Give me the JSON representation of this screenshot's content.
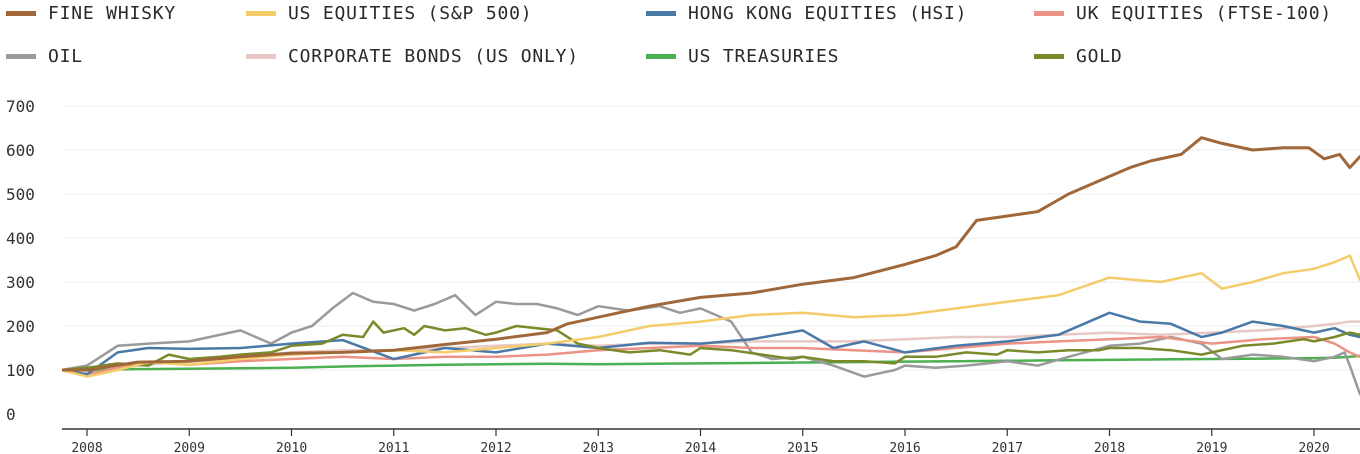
{
  "chart_data": {
    "type": "line",
    "title": "",
    "xlabel": "",
    "ylabel": "",
    "x_ticks": [
      "2008",
      "2009",
      "2010",
      "2011",
      "2012",
      "2013",
      "2014",
      "2015",
      "2016",
      "2017",
      "2018",
      "2019",
      "2020"
    ],
    "y_ticks": [
      0,
      100,
      200,
      300,
      400,
      500,
      600,
      700
    ],
    "xlim": [
      2007.75,
      2020.45
    ],
    "ylim": [
      0,
      700
    ],
    "grid": "horizontal",
    "legend_position": "top",
    "series": [
      {
        "name": "FINE WHISKY",
        "color": "#a0683a",
        "width": 3,
        "x": [
          2007.75,
          2008.0,
          2008.5,
          2009.0,
          2009.5,
          2010.0,
          2010.5,
          2011.0,
          2011.5,
          2012.0,
          2012.5,
          2012.7,
          2013.0,
          2013.5,
          2014.0,
          2014.5,
          2015.0,
          2015.5,
          2016.0,
          2016.3,
          2016.5,
          2016.7,
          2017.0,
          2017.3,
          2017.6,
          2017.9,
          2018.2,
          2018.4,
          2018.7,
          2018.9,
          2019.1,
          2019.4,
          2019.7,
          2019.95,
          2020.1,
          2020.25,
          2020.35,
          2020.45
        ],
        "y": [
          100,
          100,
          118,
          120,
          130,
          138,
          140,
          145,
          158,
          170,
          185,
          205,
          220,
          245,
          265,
          275,
          295,
          310,
          340,
          360,
          380,
          440,
          450,
          460,
          500,
          530,
          560,
          575,
          590,
          628,
          615,
          600,
          605,
          605,
          580,
          590,
          560,
          585
        ]
      },
      {
        "name": "US EQUITIES (S&P 500)",
        "color": "#f5cc6a",
        "width": 2.5,
        "x": [
          2007.75,
          2008.0,
          2008.3,
          2008.6,
          2009.0,
          2009.5,
          2010.0,
          2010.5,
          2011.0,
          2011.5,
          2012.0,
          2012.5,
          2013.0,
          2013.5,
          2014.0,
          2014.5,
          2015.0,
          2015.5,
          2016.0,
          2016.5,
          2017.0,
          2017.5,
          2018.0,
          2018.5,
          2018.9,
          2019.1,
          2019.4,
          2019.7,
          2020.0,
          2020.2,
          2020.35,
          2020.45
        ],
        "y": [
          100,
          85,
          100,
          118,
          112,
          125,
          135,
          140,
          145,
          140,
          150,
          160,
          175,
          200,
          210,
          225,
          230,
          220,
          225,
          240,
          255,
          270,
          310,
          300,
          320,
          285,
          300,
          320,
          330,
          345,
          360,
          305
        ]
      },
      {
        "name": "HONG KONG EQUITIES (HSI)",
        "color": "#4a79a8",
        "width": 2.5,
        "x": [
          2007.75,
          2008.0,
          2008.3,
          2008.6,
          2009.0,
          2009.5,
          2010.0,
          2010.5,
          2011.0,
          2011.5,
          2012.0,
          2012.5,
          2013.0,
          2013.5,
          2014.0,
          2014.5,
          2015.0,
          2015.3,
          2015.6,
          2016.0,
          2016.5,
          2017.0,
          2017.5,
          2018.0,
          2018.3,
          2018.6,
          2018.9,
          2019.1,
          2019.4,
          2019.7,
          2020.0,
          2020.2,
          2020.35,
          2020.45
        ],
        "y": [
          100,
          90,
          140,
          150,
          148,
          150,
          160,
          168,
          125,
          150,
          140,
          160,
          150,
          162,
          160,
          170,
          190,
          150,
          165,
          140,
          155,
          165,
          180,
          230,
          210,
          205,
          175,
          185,
          210,
          200,
          185,
          195,
          180,
          175
        ]
      },
      {
        "name": "UK EQUITIES (FTSE-100)",
        "color": "#ec9385",
        "width": 2.5,
        "x": [
          2007.75,
          2008.0,
          2008.3,
          2008.6,
          2009.0,
          2009.5,
          2010.0,
          2010.5,
          2011.0,
          2011.5,
          2012.0,
          2012.5,
          2013.0,
          2013.5,
          2014.0,
          2014.5,
          2015.0,
          2015.5,
          2016.0,
          2016.5,
          2017.0,
          2017.5,
          2018.0,
          2018.5,
          2019.0,
          2019.5,
          2020.0,
          2020.2,
          2020.35,
          2020.45
        ],
        "y": [
          100,
          90,
          105,
          118,
          112,
          120,
          125,
          130,
          125,
          130,
          130,
          135,
          145,
          150,
          155,
          150,
          150,
          145,
          140,
          150,
          160,
          165,
          170,
          175,
          160,
          170,
          175,
          160,
          140,
          130
        ]
      },
      {
        "name": "OIL",
        "color": "#9a9a9a",
        "width": 2.5,
        "x": [
          2007.75,
          2008.0,
          2008.3,
          2008.6,
          2009.0,
          2009.2,
          2009.5,
          2009.8,
          2010.0,
          2010.2,
          2010.4,
          2010.6,
          2010.8,
          2011.0,
          2011.2,
          2011.4,
          2011.6,
          2011.8,
          2012.0,
          2012.2,
          2012.4,
          2012.6,
          2012.8,
          2013.0,
          2013.3,
          2013.6,
          2013.8,
          2014.0,
          2014.3,
          2014.5,
          2014.7,
          2015.0,
          2015.3,
          2015.6,
          2015.9,
          2016.0,
          2016.3,
          2016.6,
          2017.0,
          2017.3,
          2017.6,
          2018.0,
          2018.3,
          2018.6,
          2018.9,
          2019.1,
          2019.4,
          2019.7,
          2020.0,
          2020.2,
          2020.3,
          2020.35,
          2020.45
        ],
        "y": [
          100,
          110,
          155,
          160,
          165,
          175,
          190,
          160,
          185,
          200,
          240,
          275,
          255,
          250,
          235,
          250,
          270,
          225,
          255,
          250,
          250,
          240,
          225,
          245,
          235,
          245,
          230,
          240,
          210,
          140,
          125,
          130,
          110,
          85,
          100,
          110,
          105,
          110,
          120,
          110,
          130,
          155,
          160,
          175,
          160,
          125,
          135,
          130,
          120,
          130,
          140,
          110,
          45
        ]
      },
      {
        "name": "CORPORATE BONDS (US ONLY)",
        "color": "#e8c8c4",
        "width": 2.5,
        "x": [
          2007.75,
          2008.0,
          2008.5,
          2009.0,
          2009.5,
          2010.0,
          2010.5,
          2011.0,
          2011.5,
          2012.0,
          2012.5,
          2013.0,
          2013.5,
          2014.0,
          2014.5,
          2015.0,
          2015.5,
          2016.0,
          2016.5,
          2017.0,
          2017.5,
          2018.0,
          2018.5,
          2019.0,
          2019.5,
          2020.0,
          2020.2,
          2020.35,
          2020.45
        ],
        "y": [
          100,
          95,
          110,
          120,
          130,
          140,
          145,
          145,
          150,
          155,
          160,
          155,
          160,
          160,
          165,
          165,
          165,
          170,
          175,
          175,
          180,
          185,
          180,
          185,
          190,
          200,
          205,
          210,
          210
        ]
      },
      {
        "name": "US TREASURIES",
        "color": "#4caf50",
        "width": 2.5,
        "x": [
          2007.75,
          2008.0,
          2008.5,
          2009.0,
          2009.5,
          2010.0,
          2010.5,
          2011.0,
          2011.5,
          2012.0,
          2012.5,
          2013.0,
          2013.5,
          2014.0,
          2014.5,
          2015.0,
          2015.5,
          2016.0,
          2016.5,
          2017.0,
          2017.5,
          2018.0,
          2018.5,
          2019.0,
          2019.5,
          2020.0,
          2020.2,
          2020.35,
          2020.45
        ],
        "y": [
          100,
          100,
          102,
          103,
          104,
          105,
          108,
          110,
          112,
          113,
          114,
          113,
          114,
          115,
          116,
          117,
          118,
          119,
          120,
          121,
          122,
          123,
          124,
          125,
          126,
          127,
          128,
          130,
          132
        ]
      },
      {
        "name": "GOLD",
        "color": "#7a8a2a",
        "width": 2.5,
        "x": [
          2007.75,
          2008.0,
          2008.3,
          2008.6,
          2008.8,
          2009.0,
          2009.3,
          2009.5,
          2009.8,
          2010.0,
          2010.3,
          2010.5,
          2010.7,
          2010.8,
          2010.9,
          2011.1,
          2011.2,
          2011.3,
          2011.5,
          2011.7,
          2011.9,
          2012.0,
          2012.2,
          2012.4,
          2012.6,
          2012.8,
          2013.0,
          2013.3,
          2013.6,
          2013.9,
          2014.0,
          2014.3,
          2014.6,
          2014.9,
          2015.0,
          2015.3,
          2015.6,
          2015.9,
          2016.0,
          2016.3,
          2016.6,
          2016.9,
          2017.0,
          2017.3,
          2017.6,
          2017.9,
          2018.0,
          2018.3,
          2018.6,
          2018.9,
          2019.0,
          2019.3,
          2019.6,
          2019.9,
          2020.0,
          2020.2,
          2020.35,
          2020.45
        ],
        "y": [
          100,
          105,
          115,
          110,
          135,
          125,
          130,
          135,
          140,
          155,
          160,
          180,
          175,
          210,
          185,
          195,
          180,
          200,
          190,
          195,
          180,
          185,
          200,
          195,
          190,
          160,
          150,
          140,
          145,
          135,
          150,
          145,
          135,
          125,
          130,
          120,
          120,
          115,
          130,
          130,
          140,
          135,
          145,
          140,
          145,
          145,
          150,
          150,
          145,
          135,
          140,
          155,
          160,
          170,
          165,
          175,
          185,
          180
        ]
      }
    ]
  }
}
